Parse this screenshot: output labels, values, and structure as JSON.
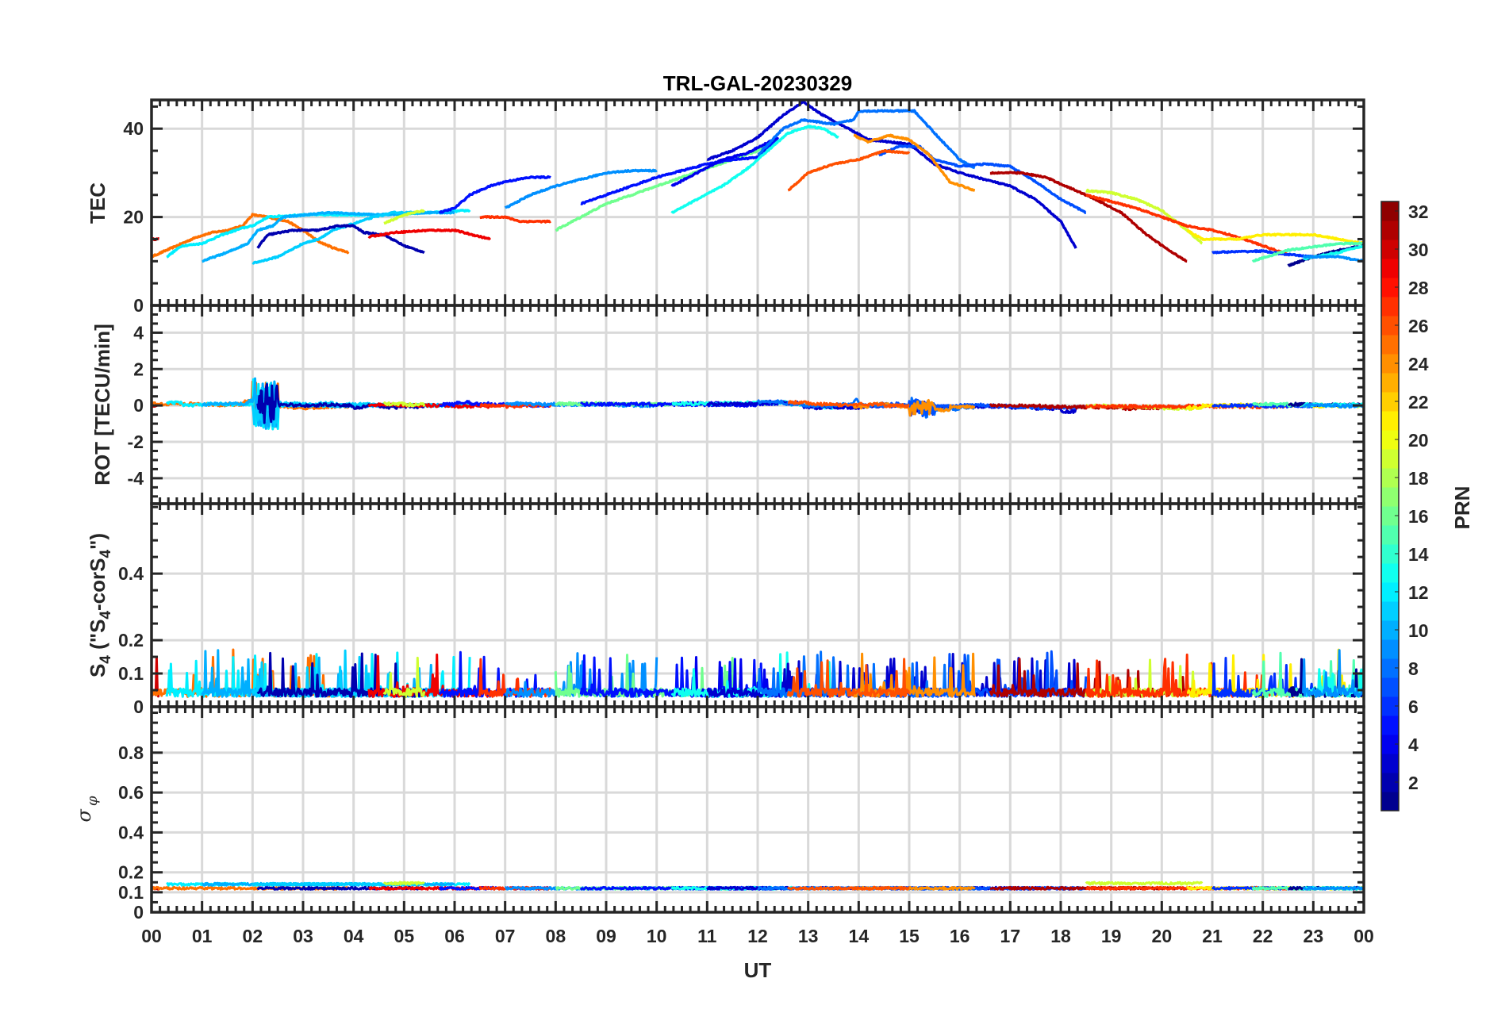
{
  "chart_data": {
    "type": "line",
    "title": "TRL-GAL-20230329",
    "xlabel": "UT",
    "xlim": [
      0,
      24
    ],
    "x_ticks": [
      0,
      1,
      2,
      3,
      4,
      5,
      6,
      7,
      8,
      9,
      10,
      11,
      12,
      13,
      14,
      15,
      16,
      17,
      18,
      19,
      20,
      21,
      22,
      23,
      24
    ],
    "x_ticklabels": [
      "00",
      "01",
      "02",
      "03",
      "04",
      "05",
      "06",
      "07",
      "08",
      "09",
      "10",
      "11",
      "12",
      "13",
      "14",
      "15",
      "16",
      "17",
      "18",
      "19",
      "20",
      "21",
      "22",
      "23",
      "00"
    ],
    "colorbar": {
      "label": "PRN",
      "colormap": "jet",
      "levels": 32,
      "range": [
        1,
        32
      ],
      "ticks": [
        2,
        4,
        6,
        8,
        10,
        12,
        14,
        16,
        18,
        20,
        22,
        24,
        26,
        28,
        30,
        32
      ],
      "ticklabels": [
        "2",
        "4",
        "6",
        "8",
        "10",
        "12",
        "14",
        "16",
        "18",
        "20",
        "22",
        "24",
        "26",
        "28",
        "30",
        "32"
      ]
    },
    "panels": [
      {
        "id": "tec",
        "ylabel": "TEC",
        "ylim": [
          0,
          46.5
        ],
        "yticks": [
          0,
          20,
          40
        ],
        "yticklabels": [
          "0",
          "20",
          "40"
        ],
        "yminor": 5
      },
      {
        "id": "rot",
        "ylabel": "ROT [TECU/min]",
        "ylim": [
          -5.4,
          5.5
        ],
        "yticks": [
          -4,
          -2,
          0,
          2,
          4
        ],
        "yticklabels": [
          "-4",
          "-2",
          "0",
          "2",
          "4"
        ],
        "yminor": 0.5
      },
      {
        "id": "s4",
        "ylabel_main": "S",
        "ylabel_sub": "4",
        "ylabel_rest": " (\"S",
        "ylabel_sub2": "4",
        "ylabel_rest2": "-corS",
        "ylabel_sub3": "4",
        "ylabel_end": "\")",
        "ylim": [
          0,
          0.61
        ],
        "yticks": [
          0,
          0.1,
          0.2,
          0.4
        ],
        "yticklabels": [
          "0",
          "0.1",
          "0.2",
          "0.4"
        ],
        "yminor": 0.05
      },
      {
        "id": "sigma",
        "ylabel_main": "σ",
        "ylabel_sub": "φ",
        "ylim": [
          0,
          1.03
        ],
        "yticks": [
          0,
          0.1,
          0.2,
          0.4,
          0.6,
          0.8
        ],
        "yticklabels": [
          "0",
          "0.1",
          "0.2",
          "0.4",
          "0.6",
          "0.8"
        ],
        "yminor": 0.05
      }
    ],
    "tec_tracks": [
      {
        "prn": 30,
        "points": [
          [
            0,
            15
          ],
          [
            0.15,
            15
          ]
        ]
      },
      {
        "prn": 25,
        "points": [
          [
            0,
            11
          ],
          [
            0.3,
            12.5
          ],
          [
            0.6,
            14
          ],
          [
            0.9,
            15.5
          ],
          [
            1.2,
            16.5
          ],
          [
            1.5,
            17
          ],
          [
            1.8,
            18
          ],
          [
            2.0,
            20.5
          ],
          [
            2.3,
            20
          ],
          [
            2.7,
            19
          ],
          [
            3.0,
            17
          ],
          [
            3.3,
            14.5
          ],
          [
            3.6,
            13
          ],
          [
            3.9,
            12
          ]
        ]
      },
      {
        "prn": 12,
        "points": [
          [
            0.3,
            11
          ],
          [
            0.6,
            13.5
          ],
          [
            1.0,
            14
          ],
          [
            1.4,
            16
          ],
          [
            1.8,
            17.5
          ],
          [
            2.0,
            18
          ],
          [
            2.3,
            20
          ],
          [
            3.0,
            20.5
          ],
          [
            3.5,
            20.5
          ],
          [
            4.5,
            20.5
          ],
          [
            5.5,
            21
          ],
          [
            6.3,
            21.5
          ]
        ]
      },
      {
        "prn": 10,
        "points": [
          [
            1.0,
            10
          ],
          [
            1.5,
            12
          ],
          [
            1.9,
            14
          ],
          [
            2.1,
            17
          ],
          [
            2.4,
            18
          ],
          [
            2.6,
            20
          ],
          [
            3.5,
            21
          ],
          [
            4.5,
            20.5
          ],
          [
            5.5,
            21
          ],
          [
            6.0,
            21
          ]
        ]
      },
      {
        "prn": 11,
        "points": [
          [
            2.0,
            9.5
          ],
          [
            2.5,
            11
          ],
          [
            3.0,
            14
          ],
          [
            3.3,
            15
          ],
          [
            3.6,
            17
          ],
          [
            4.0,
            18.5
          ],
          [
            4.4,
            20
          ],
          [
            4.8,
            21
          ],
          [
            5.3,
            21
          ]
        ]
      },
      {
        "prn": 2,
        "points": [
          [
            2.1,
            13
          ],
          [
            2.3,
            16
          ],
          [
            2.8,
            17
          ],
          [
            3.3,
            17
          ],
          [
            3.7,
            18
          ],
          [
            4.0,
            18
          ],
          [
            4.2,
            16.5
          ],
          [
            4.6,
            16
          ],
          [
            5.0,
            13.5
          ],
          [
            5.4,
            12
          ]
        ]
      },
      {
        "prn": 29,
        "points": [
          [
            4.3,
            15.5
          ],
          [
            4.8,
            16.5
          ],
          [
            5.5,
            17
          ],
          [
            6.0,
            17
          ],
          [
            6.7,
            15
          ]
        ]
      },
      {
        "prn": 19,
        "points": [
          [
            4.6,
            18.5
          ],
          [
            5.0,
            20.5
          ],
          [
            5.4,
            21.5
          ]
        ]
      },
      {
        "prn": 5,
        "points": [
          [
            5.7,
            21
          ],
          [
            6.0,
            22
          ],
          [
            6.3,
            25
          ],
          [
            6.7,
            27
          ],
          [
            7.0,
            28
          ],
          [
            7.5,
            29
          ],
          [
            7.9,
            29
          ]
        ]
      },
      {
        "prn": 27,
        "points": [
          [
            6.5,
            20
          ],
          [
            7.0,
            20
          ],
          [
            7.3,
            19
          ],
          [
            7.9,
            19
          ]
        ]
      },
      {
        "prn": 9,
        "points": [
          [
            7.0,
            22
          ],
          [
            7.5,
            25
          ],
          [
            8.0,
            27
          ],
          [
            8.5,
            28.5
          ],
          [
            9.0,
            30
          ],
          [
            9.5,
            30.5
          ],
          [
            10.0,
            30.5
          ]
        ]
      },
      {
        "prn": 16,
        "points": [
          [
            8.0,
            17
          ],
          [
            8.5,
            20
          ],
          [
            9.0,
            23
          ],
          [
            9.5,
            25
          ],
          [
            10.0,
            27
          ],
          [
            10.5,
            29
          ],
          [
            11.0,
            31
          ],
          [
            11.5,
            33
          ],
          [
            12.0,
            35
          ],
          [
            12.4,
            37.5
          ]
        ]
      },
      {
        "prn": 5,
        "points": [
          [
            8.5,
            23
          ],
          [
            9.0,
            25
          ],
          [
            9.5,
            27
          ],
          [
            10.0,
            29
          ],
          [
            10.5,
            30.5
          ],
          [
            11.0,
            32
          ],
          [
            11.5,
            33
          ],
          [
            12.0,
            33.5
          ],
          [
            12.4,
            38
          ]
        ]
      },
      {
        "prn": 4,
        "points": [
          [
            10.3,
            27
          ],
          [
            10.8,
            30
          ],
          [
            11.3,
            33
          ],
          [
            11.8,
            34.5
          ],
          [
            12.4,
            38
          ]
        ]
      },
      {
        "prn": 13,
        "points": [
          [
            10.3,
            21
          ],
          [
            10.8,
            24
          ],
          [
            11.3,
            27
          ],
          [
            11.8,
            31
          ],
          [
            12.2,
            35
          ],
          [
            12.6,
            39
          ],
          [
            13.0,
            40.5
          ],
          [
            13.3,
            40
          ],
          [
            13.6,
            38
          ]
        ]
      },
      {
        "prn": 3,
        "points": [
          [
            11.0,
            33
          ],
          [
            11.5,
            35
          ],
          [
            12.0,
            38
          ],
          [
            12.5,
            43
          ],
          [
            12.9,
            46
          ],
          [
            13.3,
            43
          ],
          [
            13.8,
            40
          ],
          [
            14.2,
            37.5
          ],
          [
            15.0,
            36.5
          ],
          [
            15.5,
            32
          ],
          [
            16.0,
            30
          ],
          [
            17.0,
            27
          ],
          [
            17.5,
            24
          ],
          [
            18.0,
            19
          ],
          [
            18.3,
            13
          ]
        ]
      },
      {
        "prn": 8,
        "points": [
          [
            12.0,
            34
          ],
          [
            12.5,
            40
          ],
          [
            12.9,
            42
          ],
          [
            13.5,
            41
          ],
          [
            13.9,
            42
          ],
          [
            14.0,
            44
          ],
          [
            14.5,
            44
          ],
          [
            15.1,
            44
          ],
          [
            15.5,
            39
          ],
          [
            16.0,
            33
          ],
          [
            16.3,
            31
          ]
        ]
      },
      {
        "prn": 7,
        "points": [
          [
            14.4,
            34
          ],
          [
            14.8,
            36
          ],
          [
            15.2,
            36
          ],
          [
            15.5,
            33
          ],
          [
            16.0,
            31.5
          ],
          [
            16.5,
            32
          ],
          [
            17.0,
            31.5
          ],
          [
            17.5,
            28
          ],
          [
            18.0,
            24
          ],
          [
            18.5,
            21
          ]
        ]
      },
      {
        "prn": 24,
        "points": [
          [
            13.9,
            38.5
          ],
          [
            14.2,
            37
          ],
          [
            14.6,
            38.5
          ],
          [
            15.0,
            37.5
          ],
          [
            15.4,
            34
          ],
          [
            15.8,
            28
          ],
          [
            16.3,
            26
          ]
        ]
      },
      {
        "prn": 26,
        "points": [
          [
            12.6,
            26
          ],
          [
            13.0,
            30
          ],
          [
            13.5,
            32
          ],
          [
            14.0,
            33
          ],
          [
            14.5,
            35
          ],
          [
            15.0,
            34.5
          ]
        ]
      },
      {
        "prn": 31,
        "points": [
          [
            16.6,
            30
          ],
          [
            17.2,
            30
          ],
          [
            17.7,
            29
          ],
          [
            18.2,
            26.5
          ],
          [
            18.6,
            24.5
          ],
          [
            19.2,
            21
          ],
          [
            19.7,
            16
          ],
          [
            20.2,
            12
          ],
          [
            20.5,
            10
          ]
        ]
      },
      {
        "prn": 19,
        "points": [
          [
            18.5,
            26
          ],
          [
            19.0,
            25.5
          ],
          [
            19.5,
            24
          ],
          [
            20.0,
            21.5
          ],
          [
            20.5,
            17
          ],
          [
            20.8,
            14
          ]
        ]
      },
      {
        "prn": 27,
        "points": [
          [
            18.5,
            25
          ],
          [
            19.0,
            23.5
          ],
          [
            19.5,
            22
          ],
          [
            20.0,
            20
          ],
          [
            20.5,
            18
          ],
          [
            21.0,
            17
          ],
          [
            21.5,
            15.5
          ],
          [
            22.0,
            13.5
          ],
          [
            22.5,
            11.5
          ]
        ]
      },
      {
        "prn": 21,
        "points": [
          [
            20.5,
            17
          ],
          [
            20.8,
            15
          ],
          [
            21.5,
            15
          ],
          [
            22.0,
            16
          ],
          [
            23.0,
            16
          ],
          [
            24.0,
            14
          ]
        ]
      },
      {
        "prn": 6,
        "points": [
          [
            21.0,
            12
          ],
          [
            22.0,
            12.3
          ],
          [
            22.5,
            11.5
          ],
          [
            23.0,
            11
          ]
        ]
      },
      {
        "prn": 15,
        "points": [
          [
            21.8,
            10
          ],
          [
            22.5,
            12.5
          ],
          [
            23.5,
            14
          ],
          [
            24.0,
            14
          ]
        ]
      },
      {
        "prn": 1,
        "points": [
          [
            22.5,
            9
          ],
          [
            23.0,
            11
          ],
          [
            23.5,
            12.5
          ],
          [
            24.0,
            13.5
          ]
        ]
      },
      {
        "prn": 13,
        "points": [
          [
            22.8,
            10.5
          ],
          [
            23.5,
            12
          ],
          [
            24.0,
            13.5
          ]
        ]
      },
      {
        "prn": 9,
        "points": [
          [
            22.8,
            11
          ],
          [
            23.5,
            11
          ],
          [
            24.0,
            10
          ]
        ]
      }
    ],
    "rot_noise": 0.08,
    "rot_events": [
      {
        "t0": 2.0,
        "t1": 2.5,
        "amplitude": 1.3
      },
      {
        "t0": 15.0,
        "t1": 15.5,
        "amplitude": 0.4
      }
    ],
    "s4_base": 0.03,
    "s4_spike_max": 0.12,
    "sigma_base": 0.12,
    "sigma_noise": 0.006
  }
}
